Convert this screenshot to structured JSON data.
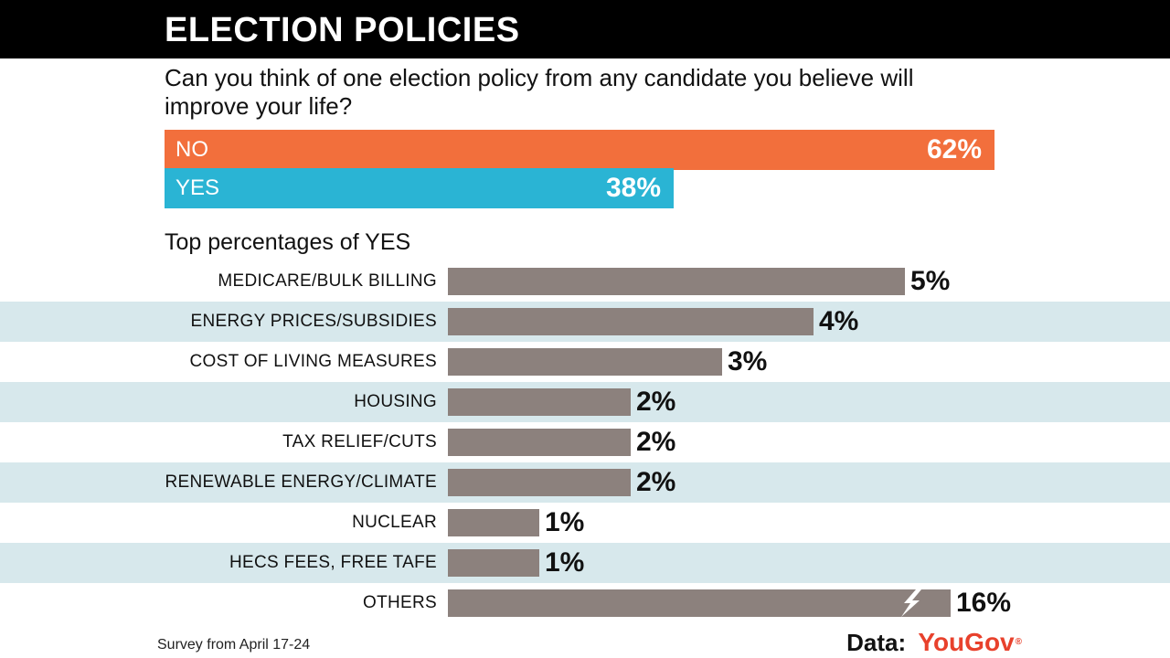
{
  "header": {
    "title": "ELECTION POLICIES"
  },
  "question": "Can you think of one election policy from any candidate you believe will improve your life?",
  "summary": [
    {
      "label": "NO",
      "value_text": "62%",
      "value": 62,
      "color": "#f26f3c"
    },
    {
      "label": "YES",
      "value_text": "38%",
      "value": 38,
      "color": "#2ab4d4"
    }
  ],
  "subtitle": "Top percentages of YES",
  "chart_data": {
    "type": "bar",
    "orientation": "horizontal",
    "title": "Top percentages of YES",
    "categories": [
      "MEDICARE/BULK BILLING",
      "ENERGY PRICES/SUBSIDIES",
      "COST OF LIVING MEASURES",
      "HOUSING",
      "TAX RELIEF/CUTS",
      "RENEWABLE ENERGY/CLIMATE",
      "NUCLEAR",
      "HECS FEES, FREE TAFE",
      "OTHERS"
    ],
    "values": [
      5,
      4,
      3,
      2,
      2,
      2,
      1,
      1,
      16
    ],
    "value_labels": [
      "5%",
      "4%",
      "3%",
      "2%",
      "2%",
      "2%",
      "1%",
      "1%",
      "16%"
    ],
    "broken_axis_for": [
      "OTHERS"
    ],
    "xlabel": "",
    "ylabel": "",
    "bar_color": "#8c817d",
    "stripe_color": "#d7e8ec"
  },
  "footer": {
    "note": "Survey from April 17-24",
    "source_prefix": "Data:",
    "source_brand": "YouGov",
    "source_reg": "®",
    "brand_color": "#e8412c"
  }
}
